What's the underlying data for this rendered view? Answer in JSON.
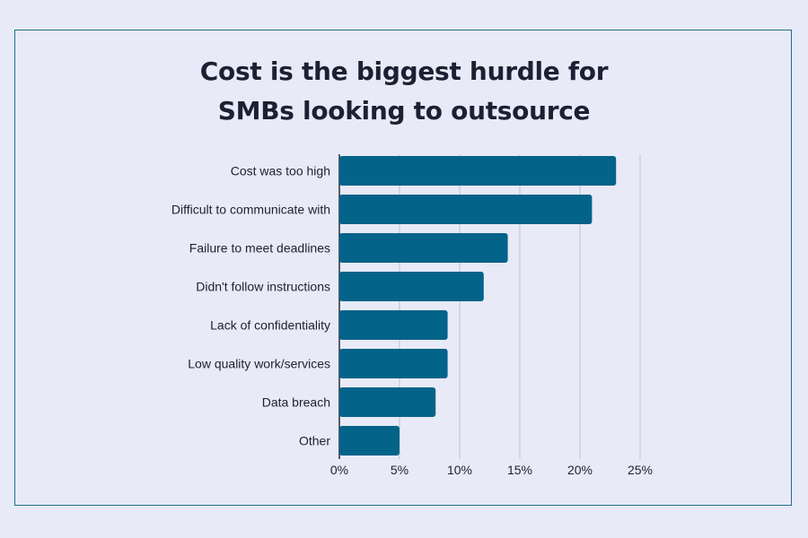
{
  "chart_data": {
    "type": "bar",
    "orientation": "horizontal",
    "title_lines": [
      "Cost is the biggest hurdle for",
      "SMBs looking to outsource"
    ],
    "categories": [
      "Cost was too high",
      "Difficult to communicate with",
      "Failure to meet deadlines",
      "Didn't follow instructions",
      "Lack of confidentiality",
      "Low quality work/services",
      "Data breach",
      "Other"
    ],
    "values": [
      23,
      21,
      14,
      12,
      9,
      9,
      8,
      5
    ],
    "value_unit": "%",
    "xlim": [
      0,
      25
    ],
    "xticks": [
      "0%",
      "5%",
      "10%",
      "15%",
      "20%",
      "25%"
    ],
    "grid": true,
    "legend": "none",
    "bar_color": "#036389",
    "grid_color": "#c8cad6",
    "text_color": "#1c2033"
  }
}
